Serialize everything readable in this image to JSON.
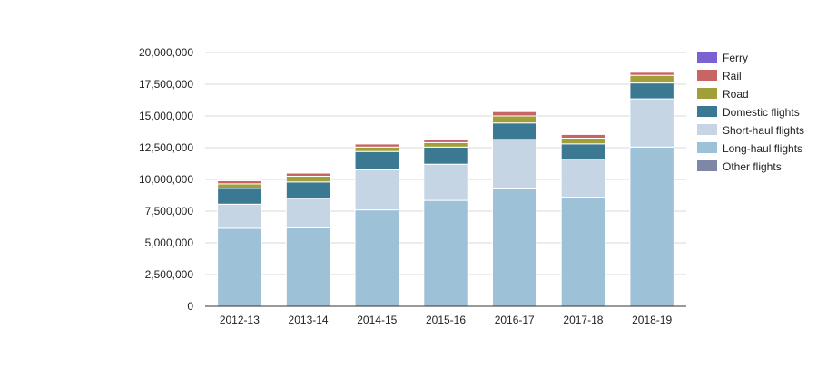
{
  "chart_data": {
    "type": "bar",
    "stacked": true,
    "categories": [
      "2012-13",
      "2013-14",
      "2014-15",
      "2015-16",
      "2016-17",
      "2017-18",
      "2018-19"
    ],
    "ylim": [
      0,
      20000000
    ],
    "yticks": [
      0,
      2500000,
      5000000,
      7500000,
      10000000,
      12500000,
      15000000,
      17500000,
      20000000
    ],
    "ytick_labels": [
      "0",
      "2,500,000",
      "5,000,000",
      "7,500,000",
      "10,000,000",
      "12,500,000",
      "15,000,000",
      "17,500,000",
      "20,000,000"
    ],
    "grid": true,
    "legend_position": "right",
    "legend_order": [
      "Ferry",
      "Rail",
      "Road",
      "Domestic flights",
      "Short-haul flights",
      "Long-haul flights",
      "Other flights"
    ],
    "series": [
      {
        "name": "Long-haul flights",
        "color": "#9dc1d6",
        "values": [
          6150000,
          6180000,
          7600000,
          8350000,
          9250000,
          8600000,
          12550000
        ]
      },
      {
        "name": "Short-haul flights",
        "color": "#c5d5e3",
        "values": [
          1900000,
          2320000,
          3150000,
          2850000,
          3900000,
          3000000,
          3800000
        ]
      },
      {
        "name": "Domestic flights",
        "color": "#3b7892",
        "values": [
          1250000,
          1300000,
          1450000,
          1350000,
          1300000,
          1200000,
          1250000
        ]
      },
      {
        "name": "Road",
        "color": "#a1a038",
        "values": [
          350000,
          450000,
          350000,
          350000,
          550000,
          450000,
          600000
        ]
      },
      {
        "name": "Rail",
        "color": "#c86464",
        "values": [
          250000,
          250000,
          250000,
          250000,
          350000,
          300000,
          250000
        ]
      },
      {
        "name": "Ferry",
        "color": "#7c61d1",
        "values": [
          50000,
          50000,
          50000,
          50000,
          50000,
          50000,
          50000
        ]
      },
      {
        "name": "Other flights",
        "color": "#7f86a6",
        "values": [
          0,
          0,
          0,
          0,
          0,
          0,
          0
        ]
      }
    ]
  }
}
